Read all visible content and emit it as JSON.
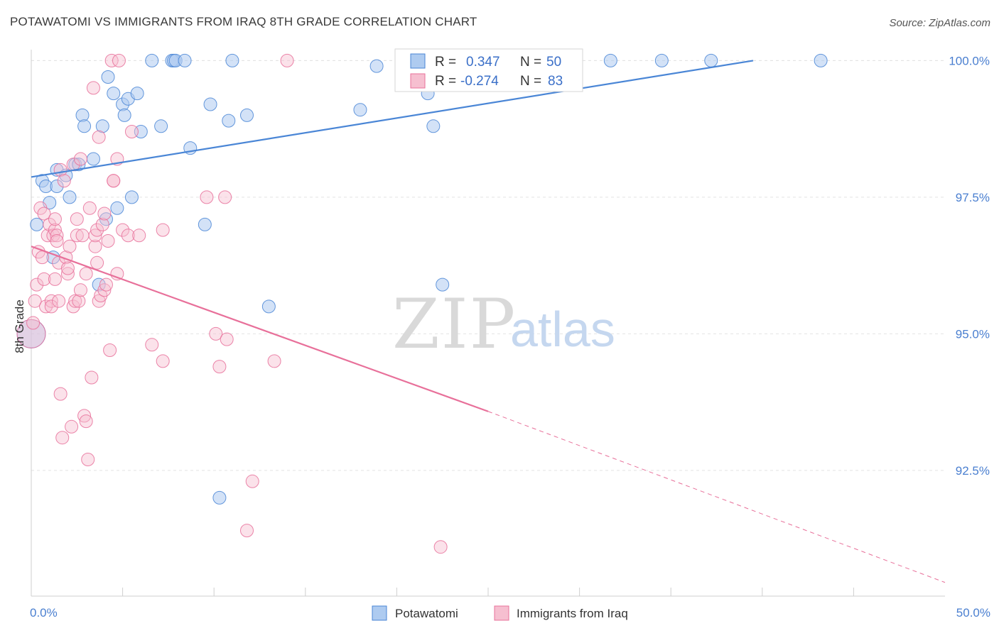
{
  "title": "POTAWATOMI VS IMMIGRANTS FROM IRAQ 8TH GRADE CORRELATION CHART",
  "source": "Source: ZipAtlas.com",
  "watermark": {
    "zip": "ZIP",
    "atlas": "atlas"
  },
  "colors": {
    "blue": "#4a86d6",
    "blue_fill": "#aecbf0",
    "pink": "#e8709a",
    "pink_fill": "#f6bfd0",
    "grid": "#e3e3e3",
    "tick_text": "#4a7fd0"
  },
  "chart_data": {
    "type": "scatter",
    "title": "POTAWATOMI VS IMMIGRANTS FROM IRAQ 8TH GRADE CORRELATION CHART",
    "xlabel": "",
    "ylabel": "8th Grade",
    "xlim": [
      0,
      50
    ],
    "ylim": [
      90.2,
      100.2
    ],
    "x_tick_labels": [
      {
        "value": 0,
        "label": "0.0%"
      },
      {
        "value": 50,
        "label": "50.0%"
      }
    ],
    "x_minor_ticks": [
      5,
      10,
      15,
      20,
      25,
      30,
      35,
      40,
      45
    ],
    "y_ticks": [
      {
        "value": 92.5,
        "label": "92.5%"
      },
      {
        "value": 95.0,
        "label": "95.0%"
      },
      {
        "value": 97.5,
        "label": "97.5%"
      },
      {
        "value": 100.0,
        "label": "100.0%"
      }
    ],
    "legend": {
      "placement": "top-center",
      "rows": [
        {
          "r_label": "R =",
          "r_value": "0.347",
          "n_label": "N =",
          "n_value": "50"
        },
        {
          "r_label": "R =",
          "r_value": "-0.274",
          "n_label": "N =",
          "n_value": "83"
        }
      ]
    },
    "bottom_legend": [
      "Potawatomi",
      "Immigrants from Iraq"
    ],
    "series": [
      {
        "name": "Potawatomi",
        "color": "#4a86d6",
        "trend": {
          "x0": 0,
          "y0": 97.87,
          "x1": 39.5,
          "y1": 100.0,
          "dashed_to": null
        },
        "points": [
          [
            0.0,
            95.0,
            20
          ],
          [
            0.3,
            97.0,
            9
          ],
          [
            0.6,
            97.8,
            9
          ],
          [
            0.8,
            97.7,
            9
          ],
          [
            1.0,
            97.4,
            9
          ],
          [
            1.2,
            96.4,
            9
          ],
          [
            1.4,
            98.0,
            9
          ],
          [
            1.4,
            97.7,
            9
          ],
          [
            1.9,
            97.9,
            9
          ],
          [
            2.1,
            97.5,
            9
          ],
          [
            2.4,
            98.1,
            9
          ],
          [
            2.6,
            98.1,
            9
          ],
          [
            2.8,
            99.0,
            9
          ],
          [
            2.9,
            98.8,
            9
          ],
          [
            3.4,
            98.2,
            9
          ],
          [
            3.7,
            95.9,
            9
          ],
          [
            3.9,
            98.8,
            9
          ],
          [
            4.1,
            97.1,
            9
          ],
          [
            4.2,
            99.7,
            9
          ],
          [
            4.5,
            99.4,
            9
          ],
          [
            4.7,
            97.3,
            9
          ],
          [
            5.0,
            99.2,
            9
          ],
          [
            5.1,
            99.0,
            9
          ],
          [
            5.3,
            99.3,
            9
          ],
          [
            5.5,
            97.5,
            9
          ],
          [
            5.8,
            99.4,
            9
          ],
          [
            6.0,
            98.7,
            9
          ],
          [
            6.6,
            100.0,
            9
          ],
          [
            7.1,
            98.8,
            9
          ],
          [
            7.7,
            100.0,
            9
          ],
          [
            7.8,
            100.0,
            9
          ],
          [
            7.9,
            100.0,
            9
          ],
          [
            8.4,
            100.0,
            9
          ],
          [
            8.7,
            98.4,
            9
          ],
          [
            9.5,
            97.0,
            9
          ],
          [
            9.8,
            99.2,
            9
          ],
          [
            10.3,
            92.0,
            9
          ],
          [
            10.8,
            98.9,
            9
          ],
          [
            11.0,
            100.0,
            9
          ],
          [
            11.8,
            99.0,
            9
          ],
          [
            13.0,
            95.5,
            9
          ],
          [
            18.0,
            99.1,
            9
          ],
          [
            18.9,
            99.9,
            9
          ],
          [
            21.7,
            99.4,
            9
          ],
          [
            22.0,
            98.8,
            9
          ],
          [
            22.5,
            95.9,
            9
          ],
          [
            31.7,
            100.0,
            9
          ],
          [
            34.5,
            100.0,
            9
          ],
          [
            37.2,
            100.0,
            9
          ],
          [
            43.2,
            100.0,
            9
          ]
        ]
      },
      {
        "name": "Immigrants from Iraq",
        "color": "#e8709a",
        "trend": {
          "x0": 0,
          "y0": 96.6,
          "x1": 25.0,
          "y1": 93.58,
          "dashed_to": {
            "x": 50,
            "y": 90.45
          }
        },
        "points": [
          [
            0.0,
            95.0,
            20
          ],
          [
            0.1,
            95.2,
            9
          ],
          [
            0.2,
            95.6,
            9
          ],
          [
            0.3,
            95.9,
            9
          ],
          [
            0.4,
            96.5,
            9
          ],
          [
            0.5,
            97.3,
            9
          ],
          [
            0.6,
            96.4,
            9
          ],
          [
            0.7,
            97.2,
            9
          ],
          [
            0.7,
            96.0,
            9
          ],
          [
            0.8,
            95.5,
            9
          ],
          [
            0.9,
            96.8,
            9
          ],
          [
            1.0,
            97.0,
            9
          ],
          [
            1.1,
            95.6,
            9
          ],
          [
            1.1,
            95.5,
            9
          ],
          [
            1.2,
            96.8,
            9
          ],
          [
            1.3,
            96.0,
            9
          ],
          [
            1.3,
            96.9,
            9
          ],
          [
            1.3,
            97.1,
            9
          ],
          [
            1.4,
            96.8,
            9
          ],
          [
            1.4,
            96.7,
            9
          ],
          [
            1.5,
            95.6,
            9
          ],
          [
            1.5,
            96.3,
            9
          ],
          [
            1.6,
            98.0,
            9
          ],
          [
            1.6,
            93.9,
            9
          ],
          [
            1.7,
            93.1,
            9
          ],
          [
            1.8,
            97.8,
            9
          ],
          [
            1.9,
            96.4,
            9
          ],
          [
            2.0,
            96.1,
            9
          ],
          [
            2.0,
            96.2,
            9
          ],
          [
            2.1,
            96.6,
            9
          ],
          [
            2.2,
            93.3,
            9
          ],
          [
            2.3,
            98.1,
            9
          ],
          [
            2.3,
            95.5,
            9
          ],
          [
            2.4,
            95.6,
            9
          ],
          [
            2.5,
            97.1,
            9
          ],
          [
            2.5,
            96.8,
            9
          ],
          [
            2.6,
            95.6,
            9
          ],
          [
            2.7,
            98.2,
            9
          ],
          [
            2.7,
            95.8,
            9
          ],
          [
            2.8,
            96.8,
            9
          ],
          [
            2.9,
            93.5,
            9
          ],
          [
            3.0,
            93.4,
            9
          ],
          [
            3.0,
            96.1,
            9
          ],
          [
            3.1,
            92.7,
            9
          ],
          [
            3.2,
            97.3,
            9
          ],
          [
            3.3,
            94.2,
            9
          ],
          [
            3.4,
            99.5,
            9
          ],
          [
            3.5,
            96.6,
            9
          ],
          [
            3.5,
            96.8,
            9
          ],
          [
            3.6,
            96.9,
            9
          ],
          [
            3.6,
            96.3,
            9
          ],
          [
            3.7,
            98.6,
            9
          ],
          [
            3.7,
            95.6,
            9
          ],
          [
            3.8,
            95.7,
            9
          ],
          [
            3.9,
            97.0,
            9
          ],
          [
            4.0,
            97.2,
            9
          ],
          [
            4.0,
            95.8,
            9
          ],
          [
            4.1,
            95.9,
            9
          ],
          [
            4.2,
            96.7,
            9
          ],
          [
            4.3,
            94.7,
            9
          ],
          [
            4.4,
            100.0,
            9
          ],
          [
            4.5,
            97.8,
            9
          ],
          [
            4.5,
            97.8,
            9
          ],
          [
            4.7,
            96.1,
            9
          ],
          [
            4.7,
            98.2,
            9
          ],
          [
            4.8,
            100.0,
            9
          ],
          [
            5.0,
            96.9,
            9
          ],
          [
            5.3,
            96.8,
            9
          ],
          [
            5.5,
            98.7,
            9
          ],
          [
            5.9,
            96.8,
            9
          ],
          [
            6.6,
            94.8,
            9
          ],
          [
            7.2,
            94.5,
            9
          ],
          [
            7.2,
            96.9,
            9
          ],
          [
            9.6,
            97.5,
            9
          ],
          [
            10.1,
            95.0,
            9
          ],
          [
            10.3,
            94.4,
            9
          ],
          [
            10.6,
            97.5,
            9
          ],
          [
            10.7,
            94.9,
            9
          ],
          [
            11.8,
            91.4,
            9
          ],
          [
            12.1,
            92.3,
            9
          ],
          [
            13.3,
            94.5,
            9
          ],
          [
            14.0,
            100.0,
            9
          ],
          [
            22.4,
            91.1,
            9
          ]
        ]
      }
    ]
  }
}
